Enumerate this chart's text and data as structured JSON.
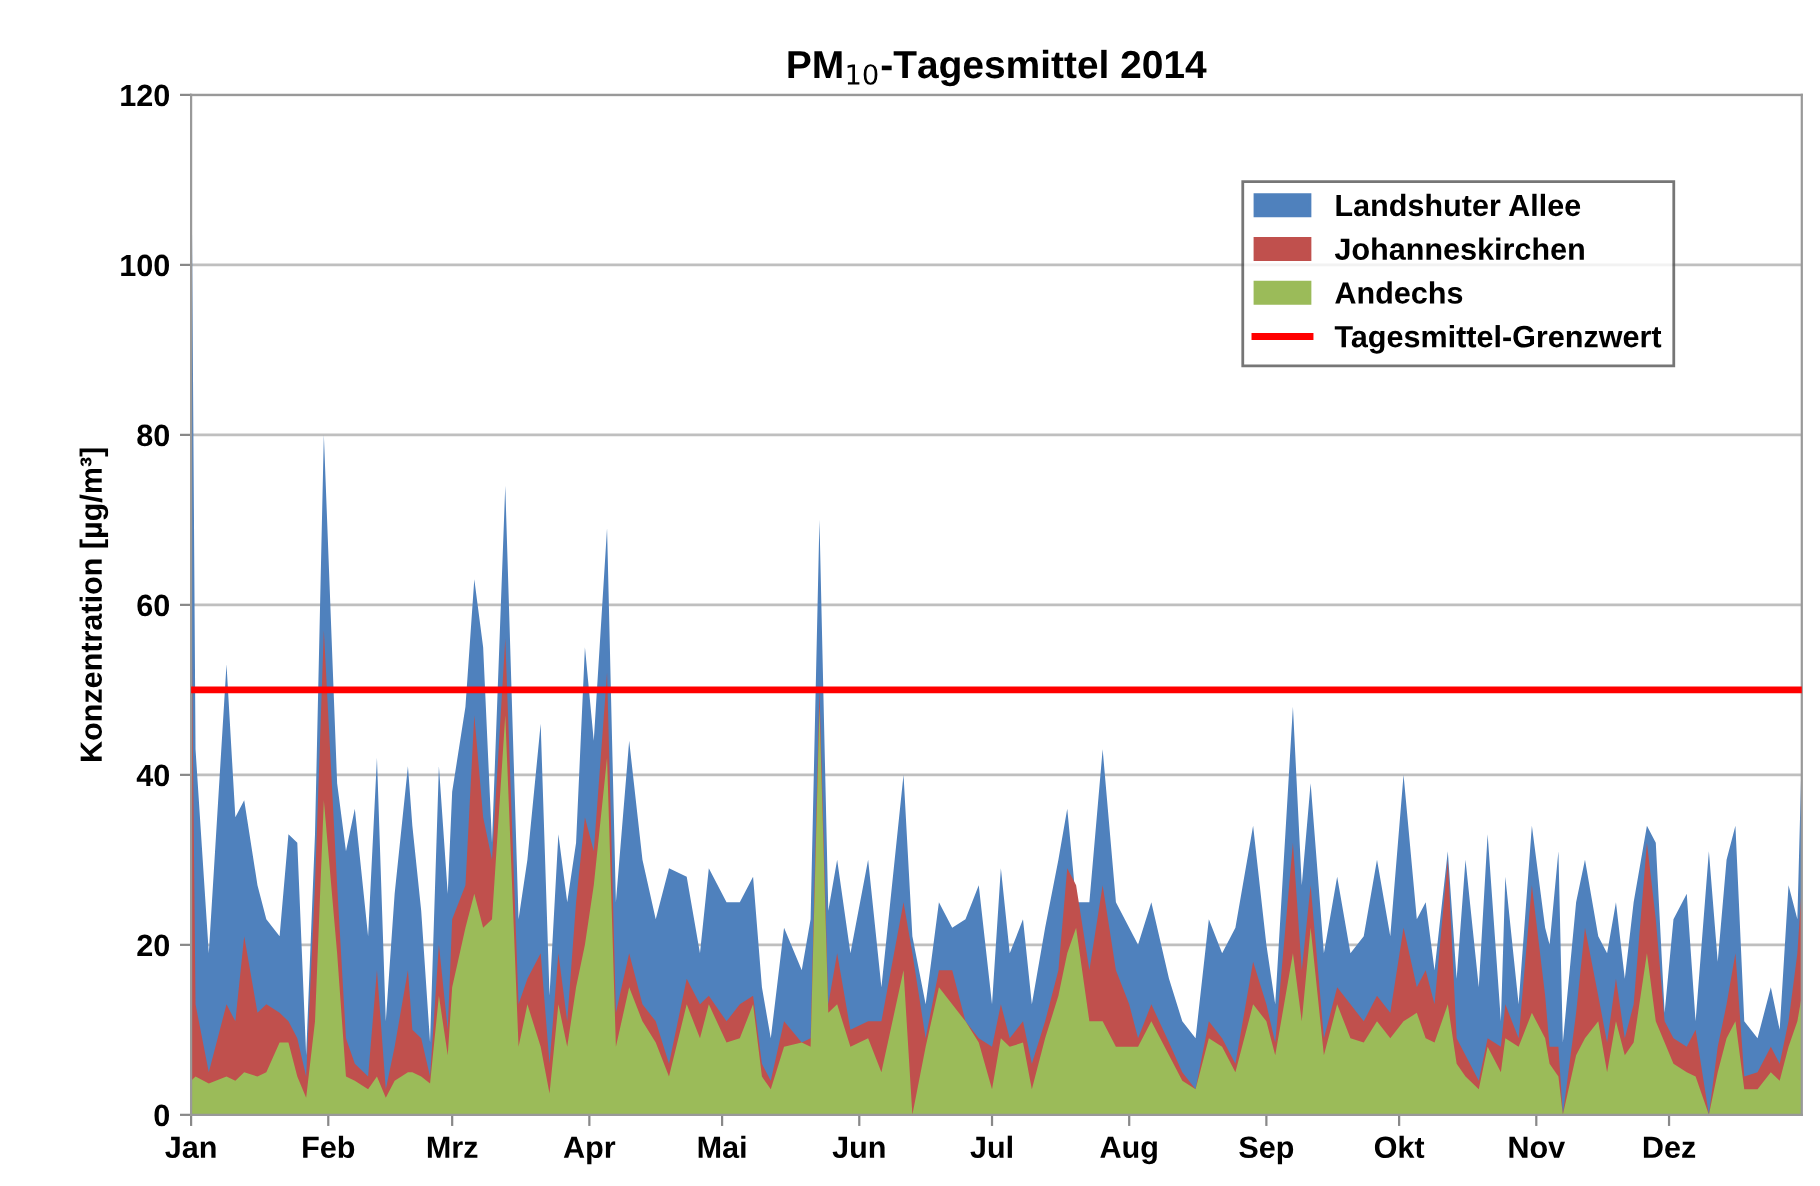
{
  "chart_data": {
    "type": "area",
    "title": "PM$_{10}$-Tagesmittel 2014",
    "ylabel": "Konzentration [µg/m³]",
    "x": [
      "2014-01-01",
      "2014-01-02",
      "2014-01-05",
      "2014-01-09",
      "2014-01-11",
      "2014-01-13",
      "2014-01-16",
      "2014-01-18",
      "2014-01-21",
      "2014-01-23",
      "2014-01-25",
      "2014-01-27",
      "2014-01-29",
      "2014-01-31",
      "2014-02-03",
      "2014-02-05",
      "2014-02-07",
      "2014-02-10",
      "2014-02-12",
      "2014-02-14",
      "2014-02-16",
      "2014-02-19",
      "2014-02-20",
      "2014-02-22",
      "2014-02-24",
      "2014-02-26",
      "2014-02-28",
      "2014-03-01",
      "2014-03-04",
      "2014-03-06",
      "2014-03-08",
      "2014-03-10",
      "2014-03-13",
      "2014-03-16",
      "2014-03-18",
      "2014-03-21",
      "2014-03-23",
      "2014-03-25",
      "2014-03-27",
      "2014-03-29",
      "2014-03-31",
      "2014-04-02",
      "2014-04-05",
      "2014-04-07",
      "2014-04-10",
      "2014-04-13",
      "2014-04-16",
      "2014-04-19",
      "2014-04-23",
      "2014-04-26",
      "2014-04-28",
      "2014-05-02",
      "2014-05-05",
      "2014-05-08",
      "2014-05-10",
      "2014-05-12",
      "2014-05-15",
      "2014-05-19",
      "2014-05-21",
      "2014-05-23",
      "2014-05-25",
      "2014-05-27",
      "2014-05-30",
      "2014-06-03",
      "2014-06-06",
      "2014-06-11",
      "2014-06-13",
      "2014-06-16",
      "2014-06-19",
      "2014-06-22",
      "2014-06-25",
      "2014-06-28",
      "2014-07-01",
      "2014-07-03",
      "2014-07-05",
      "2014-07-08",
      "2014-07-10",
      "2014-07-13",
      "2014-07-16",
      "2014-07-18",
      "2014-07-20",
      "2014-07-23",
      "2014-07-26",
      "2014-07-29",
      "2014-08-01",
      "2014-08-03",
      "2014-08-06",
      "2014-08-10",
      "2014-08-13",
      "2014-08-16",
      "2014-08-19",
      "2014-08-22",
      "2014-08-25",
      "2014-08-29",
      "2014-09-01",
      "2014-09-03",
      "2014-09-07",
      "2014-09-09",
      "2014-09-11",
      "2014-09-14",
      "2014-09-17",
      "2014-09-20",
      "2014-09-23",
      "2014-09-26",
      "2014-09-29",
      "2014-10-02",
      "2014-10-05",
      "2014-10-07",
      "2014-10-09",
      "2014-10-12",
      "2014-10-14",
      "2014-10-16",
      "2014-10-19",
      "2014-10-21",
      "2014-10-24",
      "2014-10-25",
      "2014-10-28",
      "2014-10-31",
      "2014-11-03",
      "2014-11-04",
      "2014-11-06",
      "2014-11-07",
      "2014-11-10",
      "2014-11-12",
      "2014-11-15",
      "2014-11-17",
      "2014-11-19",
      "2014-11-21",
      "2014-11-23",
      "2014-11-26",
      "2014-11-28",
      "2014-11-30",
      "2014-12-02",
      "2014-12-05",
      "2014-12-07",
      "2014-12-10",
      "2014-12-12",
      "2014-12-14",
      "2014-12-16",
      "2014-12-18",
      "2014-12-21",
      "2014-12-24",
      "2014-12-26",
      "2014-12-28",
      "2014-12-30",
      "2014-12-31"
    ],
    "series": [
      {
        "name": "Landshuter Allee",
        "color": "#4f81bd",
        "values": [
          120,
          43,
          19,
          53,
          35,
          37,
          27,
          23,
          21,
          33,
          32,
          7,
          33,
          80,
          39,
          31,
          36,
          21,
          42,
          11,
          26,
          41,
          34,
          24,
          8.5,
          41,
          26,
          38,
          48,
          63,
          55,
          32,
          74,
          23,
          30,
          46,
          14,
          33,
          25,
          32,
          55,
          44,
          69,
          25,
          44,
          30,
          23,
          29,
          28,
          19,
          29,
          25,
          25,
          28,
          15,
          9,
          22,
          17,
          23,
          70,
          24,
          30,
          19,
          30,
          15,
          40,
          21,
          13,
          25,
          22,
          23,
          27,
          13,
          29,
          19,
          23,
          13,
          22,
          30,
          36,
          25,
          25,
          43,
          25,
          22,
          20,
          25,
          16,
          11,
          9,
          23,
          19,
          22,
          34,
          20,
          13,
          48,
          27,
          39,
          19,
          28,
          19,
          21,
          30,
          21,
          40,
          23,
          25,
          17,
          31,
          16,
          30,
          15,
          33,
          11,
          28,
          13,
          34,
          22,
          20,
          31,
          8.5,
          25,
          30,
          21,
          19,
          25,
          16,
          25,
          34,
          32,
          12,
          23,
          26,
          11,
          31,
          18,
          30,
          34,
          11,
          9,
          15,
          10,
          27,
          23,
          43
        ]
      },
      {
        "name": "Johanneskirchen",
        "color": "#c0504d",
        "values": [
          65,
          13,
          5,
          13,
          11,
          21,
          12,
          13,
          12,
          11,
          9,
          4.5,
          27,
          57,
          27,
          9,
          6,
          4.5,
          17,
          3,
          8,
          17,
          10,
          9,
          4.5,
          20,
          10,
          23,
          27,
          47,
          35,
          30,
          56,
          13,
          16,
          19,
          6,
          19,
          11,
          25,
          35,
          31,
          52,
          12,
          19,
          13,
          11,
          6,
          16,
          13,
          14,
          11,
          13,
          14,
          6,
          4,
          11,
          8.5,
          9,
          50,
          13,
          19,
          10,
          11,
          11,
          25,
          19,
          9,
          17,
          17,
          11,
          9,
          8,
          13,
          9,
          11,
          6,
          11,
          17,
          29,
          27,
          17,
          27,
          17,
          13,
          9,
          13,
          8.5,
          5,
          3,
          11,
          9,
          6,
          18,
          13,
          8.5,
          32,
          17,
          27,
          9,
          15,
          13,
          11,
          14,
          12,
          22,
          15,
          17,
          13,
          30,
          9,
          7,
          4,
          9,
          8,
          13,
          9,
          27,
          14,
          8,
          8,
          0,
          12,
          22,
          14,
          8.5,
          16,
          9,
          13,
          32,
          23,
          11,
          9,
          8,
          10,
          0,
          8,
          13,
          19,
          4.5,
          5,
          8,
          6,
          11,
          19,
          27
        ]
      },
      {
        "name": "Andechs",
        "color": "#9bbb59",
        "values": [
          4,
          4.5,
          3.7,
          4.5,
          4,
          5,
          4.5,
          5,
          8.5,
          8.5,
          4.5,
          2,
          11,
          37,
          19,
          4.5,
          4,
          3,
          4.5,
          2,
          4,
          5,
          5,
          4.5,
          3.7,
          14,
          7,
          15,
          22,
          26,
          22,
          23,
          47,
          8,
          13,
          8,
          2.5,
          13,
          8,
          15,
          20,
          27,
          42,
          8,
          15,
          11,
          8.5,
          4.5,
          13,
          9,
          13,
          8.5,
          9,
          13,
          4.5,
          3,
          8,
          8.5,
          8,
          48,
          12,
          13,
          8,
          9,
          5,
          17,
          0,
          8,
          15,
          13,
          11,
          8.5,
          3,
          9,
          8,
          8.5,
          3,
          9,
          14,
          19,
          22,
          11,
          11,
          8,
          8,
          8,
          11,
          7,
          4,
          3,
          9,
          8,
          5,
          13,
          11,
          7,
          19,
          11,
          22,
          7,
          13,
          9,
          8.5,
          11,
          9,
          11,
          12,
          9,
          8.5,
          13,
          6,
          4.5,
          3,
          8,
          5,
          9,
          8,
          12,
          9,
          6,
          4.5,
          0,
          7,
          9,
          11,
          5,
          11,
          7,
          8.5,
          19,
          11,
          8.5,
          6,
          5,
          4.5,
          0,
          5,
          9,
          11,
          3,
          3,
          5,
          4,
          8,
          11,
          14
        ]
      }
    ],
    "xlim": [
      "2014-01-01",
      "2014-12-31"
    ],
    "xticks": [
      {
        "value": "2014-01-01",
        "label": "Jan"
      },
      {
        "value": "2014-02-01",
        "label": "Feb"
      },
      {
        "value": "2014-03-01",
        "label": "Mrz"
      },
      {
        "value": "2014-04-01",
        "label": "Apr"
      },
      {
        "value": "2014-05-01",
        "label": "Mai"
      },
      {
        "value": "2014-06-01",
        "label": "Jun"
      },
      {
        "value": "2014-07-01",
        "label": "Jul"
      },
      {
        "value": "2014-08-01",
        "label": "Aug"
      },
      {
        "value": "2014-09-01",
        "label": "Sep"
      },
      {
        "value": "2014-10-01",
        "label": "Okt"
      },
      {
        "value": "2014-11-01",
        "label": "Nov"
      },
      {
        "value": "2014-12-01",
        "label": "Dez"
      }
    ],
    "ylim": [
      0,
      120
    ],
    "yticks": [
      0,
      20,
      40,
      60,
      80,
      100,
      120
    ],
    "ref_lines": [
      {
        "axis": "y",
        "value": 50,
        "label": "Tagesmittel-Grenzwert",
        "color": "#ff0000",
        "line_style": "solid"
      }
    ],
    "grid": "y",
    "legend": "top right"
  }
}
